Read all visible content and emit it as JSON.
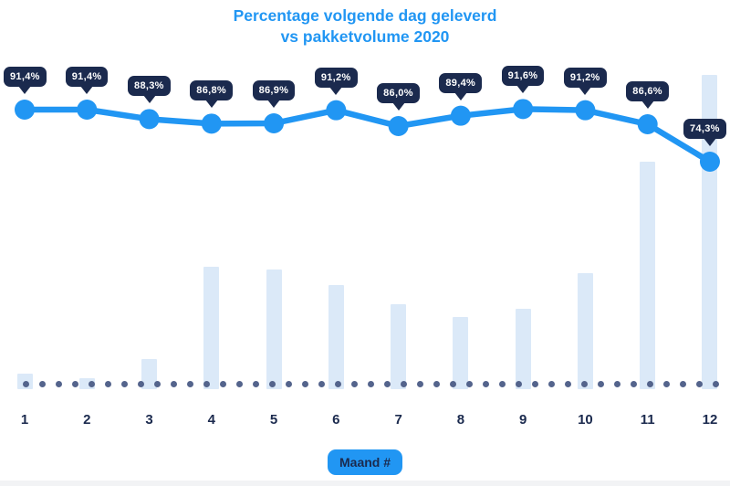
{
  "title": {
    "line1": "Percentage volgende dag geleverd",
    "line2": "vs pakketvolume 2020"
  },
  "x_axis": {
    "tick_labels": [
      "1",
      "2",
      "3",
      "4",
      "5",
      "6",
      "7",
      "8",
      "9",
      "10",
      "11",
      "12"
    ],
    "axis_badge_label": "Maand #"
  },
  "chart_data": {
    "type": "combo",
    "title": "Percentage volgende dag geleverd vs pakketvolume 2020",
    "xlabel": "Maand #",
    "ylabel": "",
    "legend": "none",
    "grid": "dotted baseline only",
    "categories": [
      1,
      2,
      3,
      4,
      5,
      6,
      7,
      8,
      9,
      10,
      11,
      12
    ],
    "series": [
      {
        "name": "Percentage volgende dag geleverd",
        "type": "line",
        "unit": "%",
        "values": [
          91.4,
          91.4,
          88.3,
          86.8,
          86.9,
          91.2,
          86.0,
          89.4,
          91.6,
          91.2,
          86.6,
          74.3
        ],
        "point_labels": [
          "91,4%",
          "91,4%",
          "88,3%",
          "86,8%",
          "86,9%",
          "91,2%",
          "86,0%",
          "89,4%",
          "91,6%",
          "91,2%",
          "86,6%",
          "74,3%"
        ],
        "color": "#2196f3"
      },
      {
        "name": "Pakketvolume 2020",
        "type": "bar",
        "unit": "relative volume, % of December peak (no numeric axis shown)",
        "values": [
          4.9,
          3.5,
          9.6,
          39.0,
          38.1,
          33.1,
          27.0,
          23.0,
          25.6,
          36.9,
          72.4,
          100
        ],
        "color": "#dbe9f8"
      }
    ]
  },
  "colors": {
    "accent_blue": "#2196f3",
    "navy": "#1b2a4e",
    "bar_fill": "#dbe9f8",
    "baseline_dot": "#54648c",
    "background": "#ffffff",
    "footer_strip": "#f2f3f5"
  }
}
